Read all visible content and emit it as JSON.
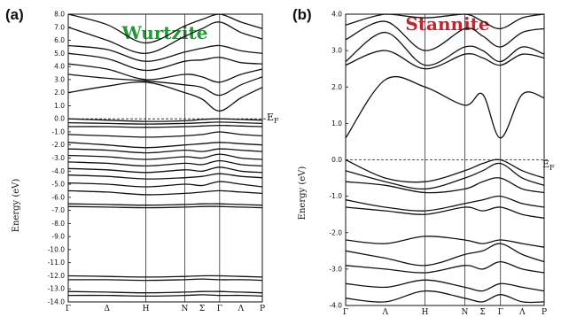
{
  "chart_data": [
    {
      "type": "line",
      "panel_label": "(a)",
      "title": "Wurtzite",
      "title_color": "#1e9a33",
      "ylabel": "Energy (eV)",
      "ylim": [
        -14.0,
        8.0
      ],
      "yticks": [
        "8.0",
        "7.0",
        "6.0",
        "5.0",
        "4.0",
        "3.0",
        "2.0",
        "1.0",
        "0.0",
        "-1.0",
        "-2.0",
        "-3.0",
        "-4.0",
        "-5.0",
        "-6.0",
        "-7.0",
        "-8.0",
        "-9.0",
        "-10.0",
        "-11.0",
        "-12.0",
        "-13.0",
        "-14.0"
      ],
      "kpath": [
        "Γ",
        "Δ",
        "H",
        "N",
        "Σ",
        "Γ",
        "Λ",
        "P"
      ],
      "kpos": [
        0,
        0.2,
        0.4,
        0.6,
        0.69,
        0.78,
        0.89,
        1.0
      ],
      "kvlines": [
        0,
        0.4,
        0.6,
        0.78,
        1.0
      ],
      "fermi_label": "E",
      "fermi_sub": "F",
      "grid": false,
      "series": [
        {
          "x": [
            0,
            0.2,
            0.4,
            0.6,
            0.69,
            0.78,
            0.89,
            1.0
          ],
          "values": [
            8.0,
            7.2,
            5.8,
            7.1,
            7.6,
            8.0,
            7.4,
            6.9
          ]
        },
        {
          "x": [
            0,
            0.2,
            0.4,
            0.6,
            0.69,
            0.78,
            0.89,
            1.0
          ],
          "values": [
            7.0,
            6.0,
            5.0,
            6.3,
            6.9,
            7.4,
            6.6,
            6.1
          ]
        },
        {
          "x": [
            0,
            0.2,
            0.4,
            0.6,
            0.69,
            0.78,
            0.89,
            1.0
          ],
          "values": [
            5.6,
            5.3,
            4.4,
            5.1,
            5.4,
            5.6,
            5.2,
            5.0
          ]
        },
        {
          "x": [
            0,
            0.2,
            0.4,
            0.6,
            0.69,
            0.78,
            0.89,
            1.0
          ],
          "values": [
            5.0,
            4.6,
            3.7,
            4.4,
            4.5,
            4.7,
            4.3,
            4.2
          ]
        },
        {
          "x": [
            0,
            0.2,
            0.4,
            0.6,
            0.69,
            0.78,
            0.89,
            1.0
          ],
          "values": [
            4.2,
            3.8,
            3.0,
            3.4,
            3.2,
            2.8,
            3.4,
            3.8
          ]
        },
        {
          "x": [
            0,
            0.2,
            0.4,
            0.6,
            0.69,
            0.78,
            0.89,
            1.0
          ],
          "values": [
            3.4,
            3.1,
            2.9,
            2.6,
            2.4,
            1.8,
            2.6,
            3.2
          ]
        },
        {
          "x": [
            0,
            0.2,
            0.4,
            0.6,
            0.69,
            0.78,
            0.89,
            1.0
          ],
          "values": [
            2.0,
            2.5,
            2.8,
            2.0,
            1.5,
            0.6,
            1.6,
            2.4
          ]
        },
        {
          "x": [
            0,
            0.2,
            0.4,
            0.6,
            0.69,
            0.78,
            0.89,
            1.0
          ],
          "values": [
            0.0,
            -0.1,
            -0.2,
            -0.15,
            -0.05,
            0.0,
            -0.05,
            -0.1
          ]
        },
        {
          "x": [
            0,
            0.2,
            0.4,
            0.6,
            0.69,
            0.78,
            0.89,
            1.0
          ],
          "values": [
            -0.3,
            -0.35,
            -0.4,
            -0.35,
            -0.3,
            -0.25,
            -0.3,
            -0.35
          ]
        },
        {
          "x": [
            0,
            0.2,
            0.4,
            0.6,
            0.69,
            0.78,
            0.89,
            1.0
          ],
          "values": [
            -0.6,
            -0.6,
            -0.65,
            -0.6,
            -0.55,
            -0.5,
            -0.55,
            -0.6
          ]
        },
        {
          "x": [
            0,
            0.2,
            0.4,
            0.6,
            0.69,
            0.78,
            0.89,
            1.0
          ],
          "values": [
            -1.2,
            -1.3,
            -1.4,
            -1.3,
            -1.2,
            -1.0,
            -1.2,
            -1.3
          ]
        },
        {
          "x": [
            0,
            0.2,
            0.4,
            0.6,
            0.69,
            0.78,
            0.89,
            1.0
          ],
          "values": [
            -1.8,
            -2.0,
            -2.2,
            -2.0,
            -1.9,
            -1.8,
            -1.9,
            -2.0
          ]
        },
        {
          "x": [
            0,
            0.2,
            0.4,
            0.6,
            0.69,
            0.78,
            0.89,
            1.0
          ],
          "values": [
            -2.3,
            -2.4,
            -2.6,
            -2.4,
            -2.5,
            -2.3,
            -2.4,
            -2.5
          ]
        },
        {
          "x": [
            0,
            0.2,
            0.4,
            0.6,
            0.69,
            0.78,
            0.89,
            1.0
          ],
          "values": [
            -2.8,
            -2.9,
            -3.1,
            -2.9,
            -3.0,
            -2.7,
            -3.0,
            -3.1
          ]
        },
        {
          "x": [
            0,
            0.2,
            0.4,
            0.6,
            0.69,
            0.78,
            0.89,
            1.0
          ],
          "values": [
            -3.3,
            -3.4,
            -3.6,
            -3.4,
            -3.5,
            -3.2,
            -3.5,
            -3.6
          ]
        },
        {
          "x": [
            0,
            0.2,
            0.4,
            0.6,
            0.69,
            0.78,
            0.89,
            1.0
          ],
          "values": [
            -3.8,
            -3.9,
            -4.1,
            -3.9,
            -4.0,
            -3.7,
            -4.0,
            -4.1
          ]
        },
        {
          "x": [
            0,
            0.2,
            0.4,
            0.6,
            0.69,
            0.78,
            0.89,
            1.0
          ],
          "values": [
            -4.3,
            -4.4,
            -4.6,
            -4.5,
            -4.4,
            -4.2,
            -4.4,
            -4.5
          ]
        },
        {
          "x": [
            0,
            0.2,
            0.4,
            0.6,
            0.69,
            0.78,
            0.89,
            1.0
          ],
          "values": [
            -4.9,
            -5.0,
            -5.2,
            -5.0,
            -5.1,
            -4.8,
            -5.0,
            -5.2
          ]
        },
        {
          "x": [
            0,
            0.2,
            0.4,
            0.6,
            0.69,
            0.78,
            0.89,
            1.0
          ],
          "values": [
            -5.5,
            -5.6,
            -5.8,
            -5.7,
            -5.6,
            -5.5,
            -5.6,
            -5.7
          ]
        },
        {
          "x": [
            0,
            0.2,
            0.4,
            0.6,
            0.69,
            0.78,
            0.89,
            1.0
          ],
          "values": [
            -6.5,
            -6.55,
            -6.6,
            -6.55,
            -6.5,
            -6.5,
            -6.55,
            -6.6
          ]
        },
        {
          "x": [
            0,
            0.2,
            0.4,
            0.6,
            0.69,
            0.78,
            0.89,
            1.0
          ],
          "values": [
            -6.7,
            -6.75,
            -6.8,
            -6.75,
            -6.7,
            -6.7,
            -6.75,
            -6.8
          ]
        },
        {
          "x": [
            0,
            0.2,
            0.4,
            0.6,
            0.69,
            0.78,
            0.89,
            1.0
          ],
          "values": [
            -12.0,
            -12.05,
            -12.1,
            -12.05,
            -12.0,
            -12.0,
            -12.05,
            -12.1
          ]
        },
        {
          "x": [
            0,
            0.2,
            0.4,
            0.6,
            0.69,
            0.78,
            0.89,
            1.0
          ],
          "values": [
            -12.3,
            -12.3,
            -12.35,
            -12.3,
            -12.25,
            -12.3,
            -12.3,
            -12.35
          ]
        },
        {
          "x": [
            0,
            0.2,
            0.4,
            0.6,
            0.69,
            0.78,
            0.89,
            1.0
          ],
          "values": [
            -13.2,
            -13.25,
            -13.3,
            -13.25,
            -13.2,
            -13.2,
            -13.25,
            -13.3
          ]
        },
        {
          "x": [
            0,
            0.2,
            0.4,
            0.6,
            0.69,
            0.78,
            0.89,
            1.0
          ],
          "values": [
            -13.5,
            -13.5,
            -13.55,
            -13.5,
            -13.45,
            -13.5,
            -13.5,
            -13.55
          ]
        }
      ]
    },
    {
      "type": "line",
      "panel_label": "(b)",
      "title": "Stannite",
      "title_color": "#c0262d",
      "ylabel": "Energy (eV)",
      "ylim": [
        -4.0,
        4.0
      ],
      "yticks": [
        "4.0",
        "3.0",
        "2.0",
        "1.0",
        "0.0",
        "-1.0",
        "-2.0",
        "-3.0",
        "-4.0"
      ],
      "kpath": [
        "Γ",
        "Λ",
        "H",
        "N",
        "Σ",
        "Γ",
        "Λ",
        "P"
      ],
      "kpos": [
        0,
        0.2,
        0.4,
        0.6,
        0.69,
        0.78,
        0.89,
        1.0
      ],
      "kvlines": [
        0,
        0.4,
        0.6,
        0.78,
        1.0
      ],
      "fermi_label": "E",
      "fermi_sub": "F",
      "grid": false,
      "series": [
        {
          "x": [
            0,
            0.2,
            0.4,
            0.6,
            0.69,
            0.78,
            0.89,
            1.0
          ],
          "values": [
            3.7,
            4.0,
            3.9,
            4.0,
            3.8,
            3.6,
            3.9,
            4.0
          ]
        },
        {
          "x": [
            0,
            0.2,
            0.4,
            0.6,
            0.69,
            0.78,
            0.89,
            1.0
          ],
          "values": [
            3.3,
            3.8,
            3.0,
            3.6,
            3.4,
            3.1,
            3.5,
            3.6
          ]
        },
        {
          "x": [
            0,
            0.2,
            0.4,
            0.6,
            0.69,
            0.78,
            0.89,
            1.0
          ],
          "values": [
            2.7,
            3.5,
            2.6,
            3.1,
            3.0,
            2.7,
            3.1,
            2.9
          ]
        },
        {
          "x": [
            0,
            0.2,
            0.4,
            0.6,
            0.69,
            0.78,
            0.89,
            1.0
          ],
          "values": [
            2.6,
            3.0,
            2.5,
            2.9,
            2.8,
            2.6,
            2.9,
            2.8
          ]
        },
        {
          "x": [
            0,
            0.2,
            0.4,
            0.6,
            0.69,
            0.78,
            0.89,
            1.0
          ],
          "values": [
            0.6,
            2.2,
            2.0,
            1.5,
            1.8,
            0.6,
            1.8,
            1.7
          ]
        },
        {
          "x": [
            0,
            0.2,
            0.4,
            0.6,
            0.69,
            0.78,
            0.89,
            1.0
          ],
          "values": [
            0.0,
            -0.5,
            -0.6,
            -0.3,
            -0.1,
            0.0,
            -0.3,
            -0.5
          ]
        },
        {
          "x": [
            0,
            0.2,
            0.4,
            0.6,
            0.69,
            0.78,
            0.89,
            1.0
          ],
          "values": [
            -0.3,
            -0.6,
            -0.8,
            -0.5,
            -0.3,
            -0.1,
            -0.5,
            -0.7
          ]
        },
        {
          "x": [
            0,
            0.2,
            0.4,
            0.6,
            0.69,
            0.78,
            0.89,
            1.0
          ],
          "values": [
            -0.6,
            -0.7,
            -0.9,
            -0.8,
            -0.6,
            -0.5,
            -0.8,
            -0.9
          ]
        },
        {
          "x": [
            0,
            0.2,
            0.4,
            0.6,
            0.69,
            0.78,
            0.89,
            1.0
          ],
          "values": [
            -1.1,
            -1.3,
            -1.4,
            -1.2,
            -1.1,
            -1.0,
            -1.2,
            -1.3
          ]
        },
        {
          "x": [
            0,
            0.2,
            0.4,
            0.6,
            0.69,
            0.78,
            0.89,
            1.0
          ],
          "values": [
            -1.3,
            -1.4,
            -1.5,
            -1.3,
            -1.4,
            -1.3,
            -1.5,
            -1.6
          ]
        },
        {
          "x": [
            0,
            0.2,
            0.4,
            0.6,
            0.69,
            0.78,
            0.89,
            1.0
          ],
          "values": [
            -2.2,
            -2.3,
            -2.1,
            -2.2,
            -2.3,
            -2.2,
            -2.3,
            -2.4
          ]
        },
        {
          "x": [
            0,
            0.2,
            0.4,
            0.6,
            0.69,
            0.78,
            0.89,
            1.0
          ],
          "values": [
            -2.5,
            -2.7,
            -2.9,
            -2.6,
            -2.5,
            -2.3,
            -2.6,
            -2.8
          ]
        },
        {
          "x": [
            0,
            0.2,
            0.4,
            0.6,
            0.69,
            0.78,
            0.89,
            1.0
          ],
          "values": [
            -2.9,
            -3.0,
            -3.1,
            -2.9,
            -3.0,
            -2.8,
            -3.0,
            -3.1
          ]
        },
        {
          "x": [
            0,
            0.2,
            0.4,
            0.6,
            0.69,
            0.78,
            0.89,
            1.0
          ],
          "values": [
            -3.4,
            -3.5,
            -3.3,
            -3.5,
            -3.6,
            -3.4,
            -3.5,
            -3.6
          ]
        },
        {
          "x": [
            0,
            0.2,
            0.4,
            0.6,
            0.69,
            0.78,
            0.89,
            1.0
          ],
          "values": [
            -3.8,
            -3.9,
            -3.6,
            -3.8,
            -3.9,
            -3.7,
            -3.9,
            -3.9
          ]
        }
      ]
    }
  ]
}
